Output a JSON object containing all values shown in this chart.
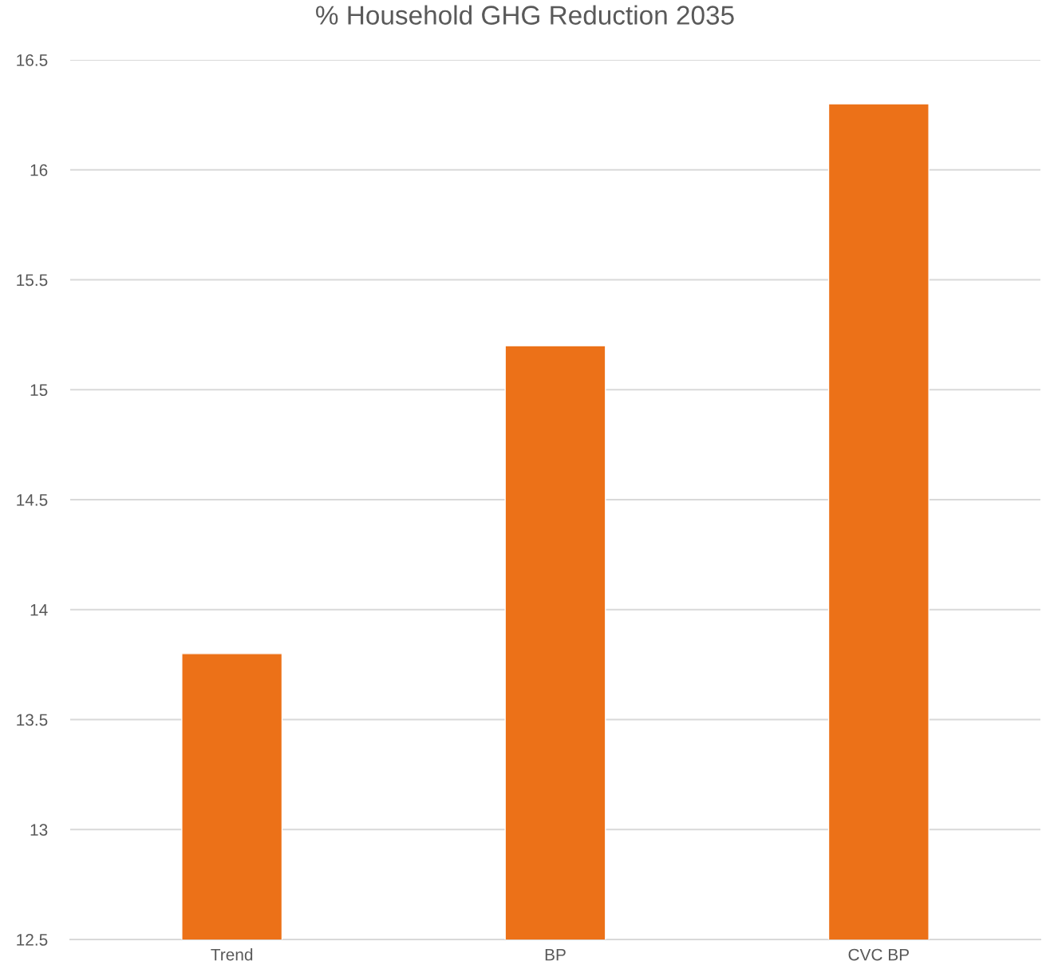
{
  "chart_data": {
    "type": "bar",
    "title": "% Household GHG Reduction 2035",
    "categories": [
      "Trend",
      "BP",
      "CVC BP"
    ],
    "values": [
      13.8,
      15.2,
      16.3
    ],
    "color": "#ec7118",
    "ylim": [
      12.5,
      16.5
    ],
    "yticks": [
      12.5,
      13,
      13.5,
      14,
      14.5,
      15,
      15.5,
      16,
      16.5
    ],
    "grid": "y"
  }
}
